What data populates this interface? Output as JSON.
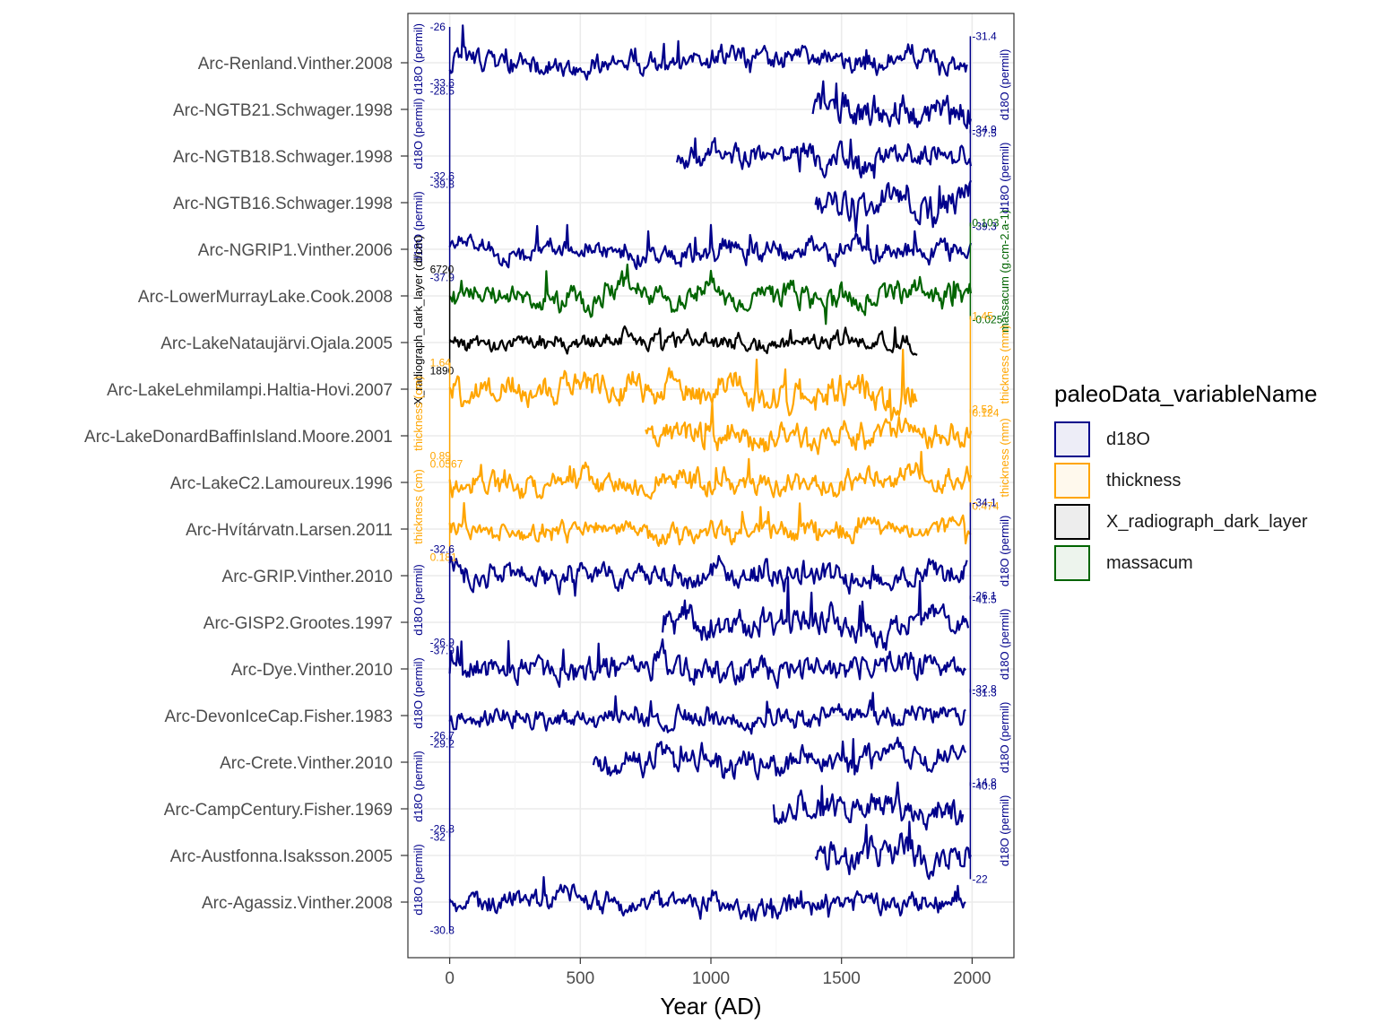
{
  "chart_data": {
    "type": "line",
    "xlabel": "Year (AD)",
    "xticks": [
      0,
      500,
      1000,
      1500,
      2000
    ],
    "xlim": [
      -160,
      2160
    ],
    "legend": {
      "title": "paleoData_variableName",
      "position": "right",
      "entries": [
        {
          "name": "d18O",
          "color": "#00008b"
        },
        {
          "name": "thickness",
          "color": "#ffa500"
        },
        {
          "name": "X_radiograph_dark_layer",
          "color": "#000000"
        },
        {
          "name": "massacum",
          "color": "#006400"
        }
      ]
    },
    "records": [
      "Arc-Renland.Vinther.2008",
      "Arc-NGTB21.Schwager.1998",
      "Arc-NGTB18.Schwager.1998",
      "Arc-NGTB16.Schwager.1998",
      "Arc-NGRIP1.Vinther.2006",
      "Arc-LowerMurrayLake.Cook.2008",
      "Arc-LakeNataujärvi.Ojala.2005",
      "Arc-LakeLehmilampi.Haltia-Hovi.2007",
      "Arc-LakeDonardBaffinIsland.Moore.2001",
      "Arc-LakeC2.Lamoureux.1996",
      "Arc-Hvítárvatn.Larsen.2011",
      "Arc-GRIP.Vinther.2010",
      "Arc-GISP2.Grootes.1997",
      "Arc-Dye.Vinther.2010",
      "Arc-DevonIceCap.Fisher.1983",
      "Arc-Crete.Vinther.2010",
      "Arc-CampCentury.Fisher.1969",
      "Arc-Austfonna.Isaksson.2005",
      "Arc-Agassiz.Vinther.2008"
    ],
    "series": [
      {
        "record": "Arc-Renland.Vinther.2008",
        "variable": "d18O",
        "start": 0,
        "end": 1980,
        "row": 0,
        "amp": 0.75
      },
      {
        "record": "Arc-NGTB21.Schwager.1998",
        "variable": "d18O",
        "start": 1390,
        "end": 1995,
        "row": 1,
        "amp": 1.1
      },
      {
        "record": "Arc-NGTB18.Schwager.1998",
        "variable": "d18O",
        "start": 870,
        "end": 1995,
        "row": 2,
        "amp": 0.9
      },
      {
        "record": "Arc-NGTB16.Schwager.1998",
        "variable": "d18O",
        "start": 1400,
        "end": 1995,
        "row": 3,
        "amp": 1.1
      },
      {
        "record": "Arc-NGRIP1.Vinther.2006",
        "variable": "d18O",
        "start": 0,
        "end": 1995,
        "row": 4,
        "amp": 0.75
      },
      {
        "record": "Arc-LowerMurrayLake.Cook.2008",
        "variable": "massacum",
        "start": 0,
        "end": 1995,
        "row": 5,
        "amp": 0.85
      },
      {
        "record": "Arc-LakeNataujärvi.Ojala.2005",
        "variable": "X_radiograph_dark_layer",
        "start": 0,
        "end": 1790,
        "row": 6,
        "amp": 0.6
      },
      {
        "record": "Arc-LakeLehmilampi.Haltia-Hovi.2007",
        "variable": "thickness",
        "start": 0,
        "end": 1790,
        "row": 7,
        "amp": 1.0
      },
      {
        "record": "Arc-LakeDonardBaffinIsland.Moore.2001",
        "variable": "thickness",
        "start": 750,
        "end": 1995,
        "row": 8,
        "amp": 0.9
      },
      {
        "record": "Arc-LakeC2.Lamoureux.1996",
        "variable": "thickness",
        "start": 0,
        "end": 1995,
        "row": 9,
        "amp": 0.8
      },
      {
        "record": "Arc-Hvítárvatn.Larsen.2011",
        "variable": "thickness",
        "start": 0,
        "end": 1995,
        "row": 10,
        "amp": 0.7
      },
      {
        "record": "Arc-GRIP.Vinther.2010",
        "variable": "d18O",
        "start": 0,
        "end": 1980,
        "row": 11,
        "amp": 0.9
      },
      {
        "record": "Arc-GISP2.Grootes.1997",
        "variable": "d18O",
        "start": 815,
        "end": 1985,
        "row": 12,
        "amp": 1.0
      },
      {
        "record": "Arc-Dye.Vinther.2010",
        "variable": "d18O",
        "start": 0,
        "end": 1975,
        "row": 13,
        "amp": 0.9
      },
      {
        "record": "Arc-DevonIceCap.Fisher.1983",
        "variable": "d18O",
        "start": 0,
        "end": 1975,
        "row": 14,
        "amp": 0.7
      },
      {
        "record": "Arc-Crete.Vinther.2010",
        "variable": "d18O",
        "start": 550,
        "end": 1975,
        "row": 15,
        "amp": 0.9
      },
      {
        "record": "Arc-CampCentury.Fisher.1969",
        "variable": "d18O",
        "start": 1240,
        "end": 1965,
        "row": 16,
        "amp": 1.0
      },
      {
        "record": "Arc-Austfonna.Isaksson.2005",
        "variable": "d18O",
        "start": 1400,
        "end": 1995,
        "row": 17,
        "amp": 1.0
      },
      {
        "record": "Arc-Agassiz.Vinther.2008",
        "variable": "d18O",
        "start": 0,
        "end": 1975,
        "row": 18,
        "amp": 0.75
      }
    ],
    "axis_labels": [
      {
        "side": "left",
        "color": "#00008b",
        "name": "d18O (permil)",
        "top": "-26",
        "bottom": "-28.5",
        "row_top": 0,
        "row_bottom": 0.8
      },
      {
        "side": "left",
        "color": "#00008b",
        "name": "d18O (permil)",
        "top": "-33.6",
        "bottom": "-39.8",
        "row_top": 1.2,
        "row_bottom": 2.8
      },
      {
        "side": "left",
        "color": "#00008b",
        "name": "d18O (permil)",
        "top": "-32.6",
        "bottom": "-37.9",
        "row_top": 3.2,
        "row_bottom": 4.8
      },
      {
        "side": "left",
        "color": "#000000",
        "name": "X_radiograph_dark_layer (dl/cm)",
        "top": "6720",
        "bottom": "1890",
        "row_top": 5.2,
        "row_bottom": 6.8
      },
      {
        "side": "left",
        "color": "#ffa500",
        "name": "thickness (cm)",
        "top": "1.64",
        "bottom": "0.0567",
        "row_top": 7.2,
        "row_bottom": 8.8
      },
      {
        "side": "left",
        "color": "#ffa500",
        "name": "thickness (cm)",
        "top": "0.89",
        "bottom": "0.181",
        "row_top": 9.2,
        "row_bottom": 10.8
      },
      {
        "side": "left",
        "color": "#00008b",
        "name": "d18O (permil)",
        "top": "-32.6",
        "bottom": "-37.9",
        "row_top": 11.2,
        "row_bottom": 12.8
      },
      {
        "side": "left",
        "color": "#00008b",
        "name": "d18O (permil)",
        "top": "-26.9",
        "bottom": "-29.2",
        "row_top": 13.2,
        "row_bottom": 14.8
      },
      {
        "side": "left",
        "color": "#00008b",
        "name": "d18O (permil)",
        "top": "-26.7",
        "bottom": "-32",
        "row_top": 15.2,
        "row_bottom": 16.8
      },
      {
        "side": "left",
        "color": "#00008b",
        "name": "d18O (permil)",
        "top": "-26.8",
        "bottom": "-30.8",
        "row_top": 17.2,
        "row_bottom": 18.8
      },
      {
        "side": "right",
        "color": "#00008b",
        "name": "d18O (permil)",
        "top": "-31.4",
        "bottom": "-37.5",
        "row_top": 0.2,
        "row_bottom": 1.7
      },
      {
        "side": "right",
        "color": "#00008b",
        "name": "d18O (permil)",
        "top": "-34.9",
        "bottom": "-39.3",
        "row_top": 2.2,
        "row_bottom": 3.7
      },
      {
        "side": "right",
        "color": "#006400",
        "name": "massacum (g.cm-2.a-1)",
        "top": "0.103",
        "bottom": "-0.025",
        "row_top": 4.2,
        "row_bottom": 5.7
      },
      {
        "side": "right",
        "color": "#ffa500",
        "name": "thickness (mm)",
        "top": "1.45",
        "bottom": "0.124",
        "row_top": 6.2,
        "row_bottom": 7.7
      },
      {
        "side": "right",
        "color": "#ffa500",
        "name": "thickness (mm)",
        "top": "2.52",
        "bottom": "0.474",
        "row_top": 8.2,
        "row_bottom": 9.7
      },
      {
        "side": "right",
        "color": "#00008b",
        "name": "d18O (permil)",
        "top": "-34.1",
        "bottom": "-41.5",
        "row_top": 10.2,
        "row_bottom": 11.7
      },
      {
        "side": "right",
        "color": "#00008b",
        "name": "d18O (permil)",
        "top": "-26.1",
        "bottom": "-31.3",
        "row_top": 12.2,
        "row_bottom": 13.7
      },
      {
        "side": "right",
        "color": "#00008b",
        "name": "d18O (permil)",
        "top": "-32.8",
        "bottom": "-40.6",
        "row_top": 14.2,
        "row_bottom": 15.7
      },
      {
        "side": "right",
        "color": "#00008b",
        "name": "d18O (permil)",
        "top": "-14.8",
        "bottom": "-22",
        "row_top": 16.2,
        "row_bottom": 17.7
      }
    ],
    "grid": true
  }
}
